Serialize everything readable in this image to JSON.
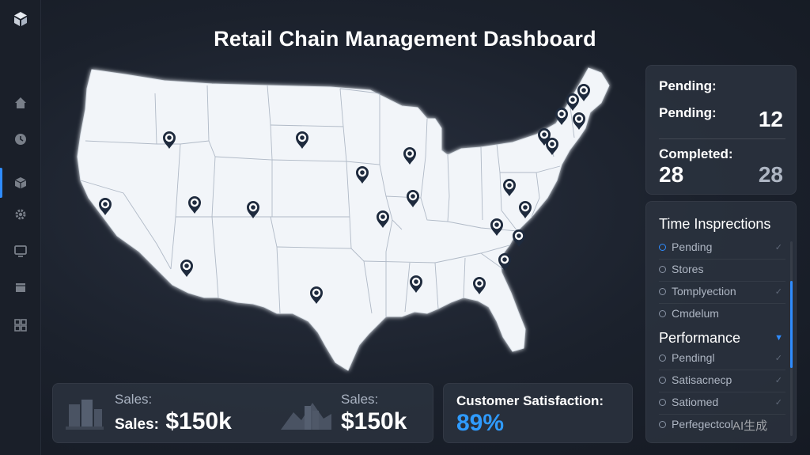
{
  "header": {
    "title": "Retail Chain Management Dashboard"
  },
  "sidebar": {
    "logo_icon": "cube-logo-icon",
    "items": [
      {
        "icon": "home-icon"
      },
      {
        "icon": "clock-icon"
      },
      {
        "icon": "box-icon",
        "active": true
      },
      {
        "icon": "gear-icon"
      },
      {
        "icon": "monitor-icon"
      },
      {
        "icon": "package-icon"
      },
      {
        "icon": "grid-icon"
      }
    ]
  },
  "map": {
    "marker_icon": "store-location-pin-icon",
    "marker_count": 24
  },
  "sales": {
    "left": {
      "label": "Sales:",
      "prefix": "Sales:",
      "value": "$150k",
      "icon": "buildings-icon"
    },
    "right": {
      "label": "Sales:",
      "value": "$150k",
      "icon": "mountain-chart-icon"
    }
  },
  "satisfaction": {
    "label": "Customer Satisfaction:",
    "value": "89%"
  },
  "status": {
    "header": "Pending:",
    "pending_label": "Pending:",
    "pending_value": "12",
    "completed_label": "Completed:",
    "completed_value": "28",
    "completed_value_2": "28"
  },
  "inspections": {
    "title": "Time Insprections",
    "items": [
      "Pending",
      "Stores",
      "Tomplyection",
      "Cmdelum"
    ]
  },
  "performance": {
    "title": "Performance",
    "items": [
      "Pendingl",
      "Satisacnecp",
      "Satiomed",
      "Perfegectcol"
    ]
  },
  "watermark": "AI生成",
  "colors": {
    "accent": "#2f8cff",
    "satisfaction": "#2f9bff",
    "map_fill": "#f2f5f9",
    "background": "#1b212c"
  }
}
